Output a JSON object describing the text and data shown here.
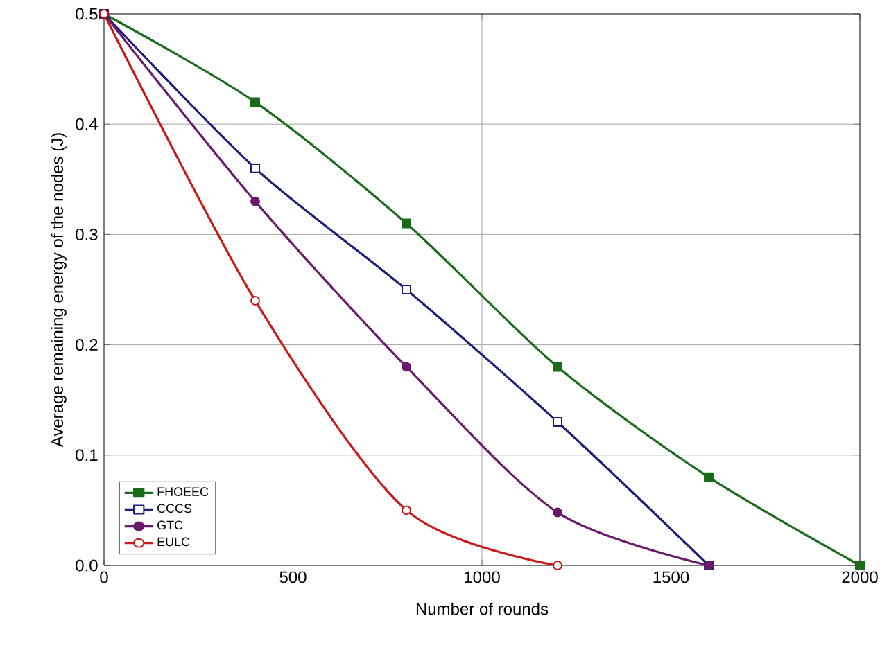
{
  "chart_data": {
    "type": "line",
    "xlabel": "Number of rounds",
    "ylabel": "Average remaining energy of the nodes (J)",
    "xlim": [
      0,
      2000
    ],
    "xticks": [
      0,
      500,
      1000,
      1500,
      2000
    ],
    "ylim": [
      0,
      0.5
    ],
    "yticks": [
      {
        "value": 0,
        "label": "0.0"
      },
      {
        "value": 0.1,
        "label": "0.1"
      },
      {
        "value": 0.2,
        "label": "0.2"
      },
      {
        "value": 0.3,
        "label": "0.3"
      },
      {
        "value": 0.4,
        "label": "0.4"
      },
      {
        "value": 0.5,
        "label": "0.5"
      }
    ],
    "grid": true,
    "legend": "bottom left",
    "series": [
      {
        "name": "FHOEEC",
        "color": "#1a6b1a",
        "marker": "square",
        "x": [
          0,
          400,
          800,
          1200,
          1600,
          2000
        ],
        "values": [
          0.5,
          0.42,
          0.31,
          0.18,
          0.08,
          0.0
        ]
      },
      {
        "name": "CCCS",
        "color": "#1c1c7a",
        "marker": "square",
        "x": [
          0,
          400,
          800,
          1200,
          1600
        ],
        "values": [
          0.5,
          0.36,
          0.25,
          0.13,
          0.0
        ]
      },
      {
        "name": "GTC",
        "color": "#6b1a6b",
        "marker": "circle",
        "x": [
          0,
          400,
          800,
          1200,
          1600
        ],
        "values": [
          0.5,
          0.33,
          0.18,
          0.048,
          0.0
        ]
      },
      {
        "name": "EULC",
        "color": "#c81818",
        "marker": "circle",
        "x": [
          0,
          400,
          800,
          1200
        ],
        "values": [
          0.5,
          0.24,
          0.05,
          0.0
        ]
      }
    ]
  }
}
